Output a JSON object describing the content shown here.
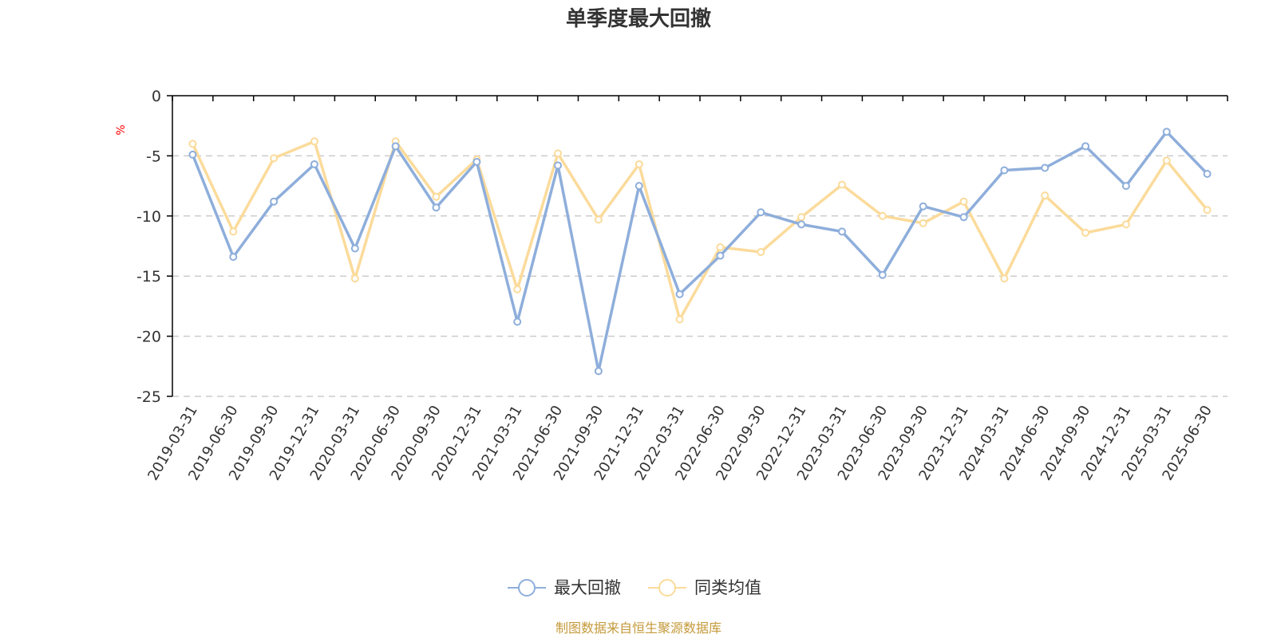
{
  "chart_data": {
    "type": "line",
    "title": "单季度最大回撤",
    "ylabel": "%",
    "ylim": [
      -25,
      0
    ],
    "yticks": [
      0,
      -5,
      -10,
      -15,
      -20,
      -25
    ],
    "grid": true,
    "legend_position": "bottom",
    "categories": [
      "2019-03-31",
      "2019-06-30",
      "2019-09-30",
      "2019-12-31",
      "2020-03-31",
      "2020-06-30",
      "2020-09-30",
      "2020-12-31",
      "2021-03-31",
      "2021-06-30",
      "2021-09-30",
      "2021-12-31",
      "2022-03-31",
      "2022-06-30",
      "2022-09-30",
      "2022-12-31",
      "2023-03-31",
      "2023-06-30",
      "2023-09-30",
      "2023-12-31",
      "2024-03-31",
      "2024-06-30",
      "2024-09-30",
      "2024-12-31",
      "2025-03-31",
      "2025-06-30"
    ],
    "series": [
      {
        "name": "最大回撤",
        "color": "#8eaedb",
        "values": [
          -4.9,
          -13.4,
          -8.8,
          -5.7,
          -12.7,
          -4.2,
          -9.3,
          -5.5,
          -18.8,
          -5.8,
          -22.9,
          -7.5,
          -16.5,
          -13.3,
          -9.7,
          -10.7,
          -11.3,
          -14.9,
          -9.2,
          -10.1,
          -6.2,
          -6.0,
          -4.2,
          -7.5,
          -3.0,
          -6.5
        ]
      },
      {
        "name": "同类均值",
        "color": "#fbdb9b",
        "values": [
          -4.0,
          -11.3,
          -5.2,
          -3.8,
          -15.2,
          -3.8,
          -8.4,
          -5.3,
          -16.1,
          -4.8,
          -10.3,
          -5.7,
          -18.6,
          -12.6,
          -13.0,
          -10.1,
          -7.4,
          -10.0,
          -10.6,
          -8.8,
          -15.2,
          -8.3,
          -11.4,
          -10.7,
          -5.4,
          -9.5
        ]
      }
    ]
  },
  "source_text": "制图数据来自恒生聚源数据库",
  "colors": {
    "axis": "#000000",
    "grid": "#cccccc",
    "unit_label": "#ff0000",
    "source": "#c49a3a",
    "text": "#333333"
  }
}
